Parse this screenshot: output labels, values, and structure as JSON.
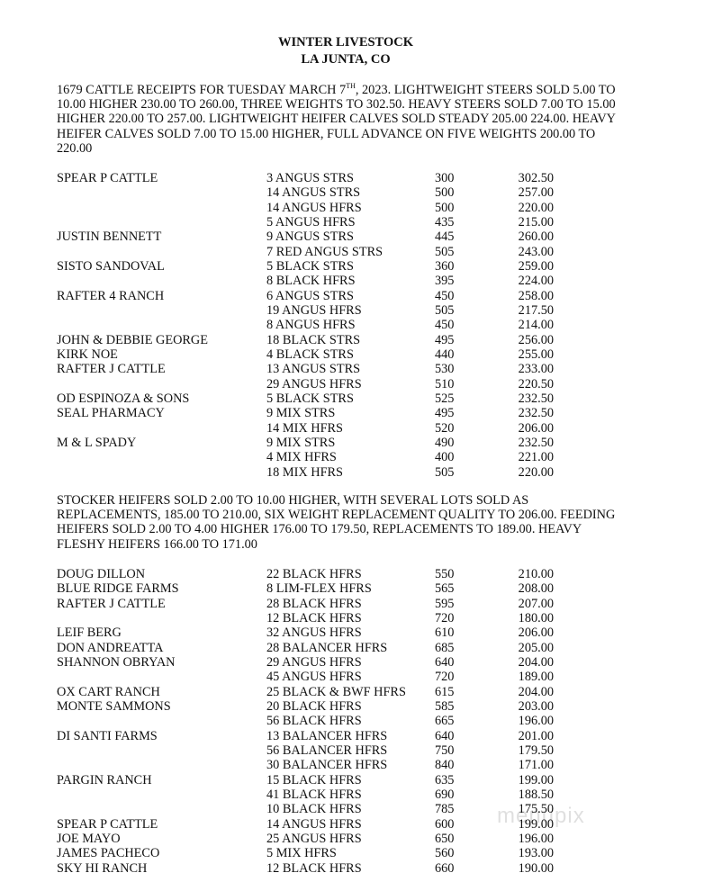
{
  "header": {
    "title": "WINTER LIVESTOCK",
    "location": "LA JUNTA, CO"
  },
  "report1": {
    "line0_pre": "1679 CATTLE RECEIPTS FOR TUESDAY MARCH 7",
    "line0_sup": "TH",
    "line0_post": ", 2023.  LIGHTWEIGHT STEERS SOLD 5.00 TO",
    "lines": [
      "10.00 HIGHER 230.00 TO 260.00, THREE WEIGHTS TO 302.50.  HEAVY STEERS SOLD 7.00 TO 15.00",
      "HIGHER 220.00 TO 257.00.  LIGHTWEIGHT HEIFER CALVES SOLD STEADY 205.00 224.00.  HEAVY",
      "HEIFER CALVES SOLD 7.00 TO 15.00 HIGHER, FULL ADVANCE ON FIVE WEIGHTS 200.00 TO",
      "220.00"
    ]
  },
  "table1": [
    {
      "seller": "SPEAR P CATTLE",
      "desc": "3 ANGUS STRS",
      "weight": "300",
      "price": "302.50"
    },
    {
      "seller": "",
      "desc": "14 ANGUS STRS",
      "weight": "500",
      "price": "257.00"
    },
    {
      "seller": "",
      "desc": "14 ANGUS HFRS",
      "weight": "500",
      "price": "220.00"
    },
    {
      "seller": "",
      "desc": "5 ANGUS HFRS",
      "weight": "435",
      "price": "215.00"
    },
    {
      "seller": "JUSTIN BENNETT",
      "desc": "9 ANGUS STRS",
      "weight": "445",
      "price": "260.00"
    },
    {
      "seller": "",
      "desc": "7 RED ANGUS STRS",
      "weight": "505",
      "price": "243.00"
    },
    {
      "seller": "SISTO SANDOVAL",
      "desc": "5 BLACK STRS",
      "weight": "360",
      "price": "259.00"
    },
    {
      "seller": "",
      "desc": "8 BLACK HFRS",
      "weight": "395",
      "price": "224.00"
    },
    {
      "seller": "RAFTER 4 RANCH",
      "desc": "6 ANGUS STRS",
      "weight": "450",
      "price": "258.00"
    },
    {
      "seller": "",
      "desc": "19 ANGUS HFRS",
      "weight": "505",
      "price": "217.50"
    },
    {
      "seller": "",
      "desc": "8 ANGUS HFRS",
      "weight": "450",
      "price": "214.00"
    },
    {
      "seller": "JOHN & DEBBIE GEORGE",
      "desc": "18 BLACK STRS",
      "weight": "495",
      "price": "256.00"
    },
    {
      "seller": "KIRK NOE",
      "desc": "4 BLACK STRS",
      "weight": "440",
      "price": "255.00"
    },
    {
      "seller": "RAFTER J CATTLE",
      "desc": "13 ANGUS STRS",
      "weight": "530",
      "price": "233.00"
    },
    {
      "seller": "",
      "desc": "29 ANGUS HFRS",
      "weight": "510",
      "price": "220.50"
    },
    {
      "seller": "OD ESPINOZA & SONS",
      "desc": "5 BLACK STRS",
      "weight": "525",
      "price": "232.50"
    },
    {
      "seller": "SEAL PHARMACY",
      "desc": "9 MIX STRS",
      "weight": "495",
      "price": "232.50"
    },
    {
      "seller": "",
      "desc": "14 MIX HFRS",
      "weight": "520",
      "price": "206.00"
    },
    {
      "seller": "M & L SPADY",
      "desc": "9 MIX STRS",
      "weight": "490",
      "price": "232.50"
    },
    {
      "seller": "",
      "desc": "4 MIX HFRS",
      "weight": "400",
      "price": "221.00"
    },
    {
      "seller": "",
      "desc": "18 MIX HFRS",
      "weight": "505",
      "price": "220.00"
    }
  ],
  "report2": {
    "lines": [
      "STOCKER HEIFERS SOLD 2.00 TO 10.00 HIGHER, WITH SEVERAL LOTS SOLD AS",
      "REPLACEMENTS, 185.00 TO 210.00, SIX WEIGHT REPLACEMENT QUALITY TO 206.00.  FEEDING",
      "HEIFERS SOLD 2.00 TO 4.00 HIGHER 176.00 TO 179.50, REPLACEMENTS TO 189.00.  HEAVY",
      "FLESHY HEIFERS 166.00 TO 171.00"
    ]
  },
  "table2": [
    {
      "seller": "DOUG DILLON",
      "desc": "22 BLACK HFRS",
      "weight": "550",
      "price": "210.00"
    },
    {
      "seller": "BLUE RIDGE FARMS",
      "desc": "8 LIM-FLEX HFRS",
      "weight": "565",
      "price": "208.00"
    },
    {
      "seller": "RAFTER J CATTLE",
      "desc": "28 BLACK HFRS",
      "weight": "595",
      "price": "207.00"
    },
    {
      "seller": "",
      "desc": "12 BLACK HFRS",
      "weight": "720",
      "price": "180.00"
    },
    {
      "seller": "LEIF BERG",
      "desc": "32 ANGUS HFRS",
      "weight": "610",
      "price": "206.00"
    },
    {
      "seller": "DON ANDREATTA",
      "desc": "28 BALANCER HFRS",
      "weight": "685",
      "price": "205.00"
    },
    {
      "seller": "SHANNON OBRYAN",
      "desc": "29 ANGUS HFRS",
      "weight": "640",
      "price": "204.00"
    },
    {
      "seller": "",
      "desc": "45 ANGUS HFRS",
      "weight": "720",
      "price": "189.00"
    },
    {
      "seller": "OX CART RANCH",
      "desc": "25 BLACK & BWF HFRS",
      "weight": "615",
      "price": "204.00"
    },
    {
      "seller": "MONTE SAMMONS",
      "desc": "20 BLACK HFRS",
      "weight": "585",
      "price": "203.00"
    },
    {
      "seller": "",
      "desc": "56 BLACK HFRS",
      "weight": "665",
      "price": "196.00"
    },
    {
      "seller": "DI SANTI FARMS",
      "desc": "13 BALANCER HFRS",
      "weight": "640",
      "price": "201.00"
    },
    {
      "seller": "",
      "desc": "56 BALANCER HFRS",
      "weight": "750",
      "price": "179.50"
    },
    {
      "seller": "",
      "desc": "30 BALANCER HFRS",
      "weight": "840",
      "price": "171.00"
    },
    {
      "seller": "PARGIN RANCH",
      "desc": "15 BLACK HFRS",
      "weight": "635",
      "price": "199.00"
    },
    {
      "seller": "",
      "desc": "41 BLACK HFRS",
      "weight": "690",
      "price": "188.50"
    },
    {
      "seller": "",
      "desc": "10 BLACK HFRS",
      "weight": "785",
      "price": "175.50"
    },
    {
      "seller": "SPEAR P CATTLE",
      "desc": "14 ANGUS HFRS",
      "weight": "600",
      "price": "199.00"
    },
    {
      "seller": "JOE MAYO",
      "desc": "25 ANGUS HFRS",
      "weight": "650",
      "price": "196.00"
    },
    {
      "seller": "JAMES PACHECO",
      "desc": "5 MIX HFRS",
      "weight": "560",
      "price": "193.00"
    },
    {
      "seller": "SKY HI RANCH",
      "desc": "12 BLACK HFRS",
      "weight": "660",
      "price": "190.00"
    }
  ],
  "watermark": "menupix"
}
